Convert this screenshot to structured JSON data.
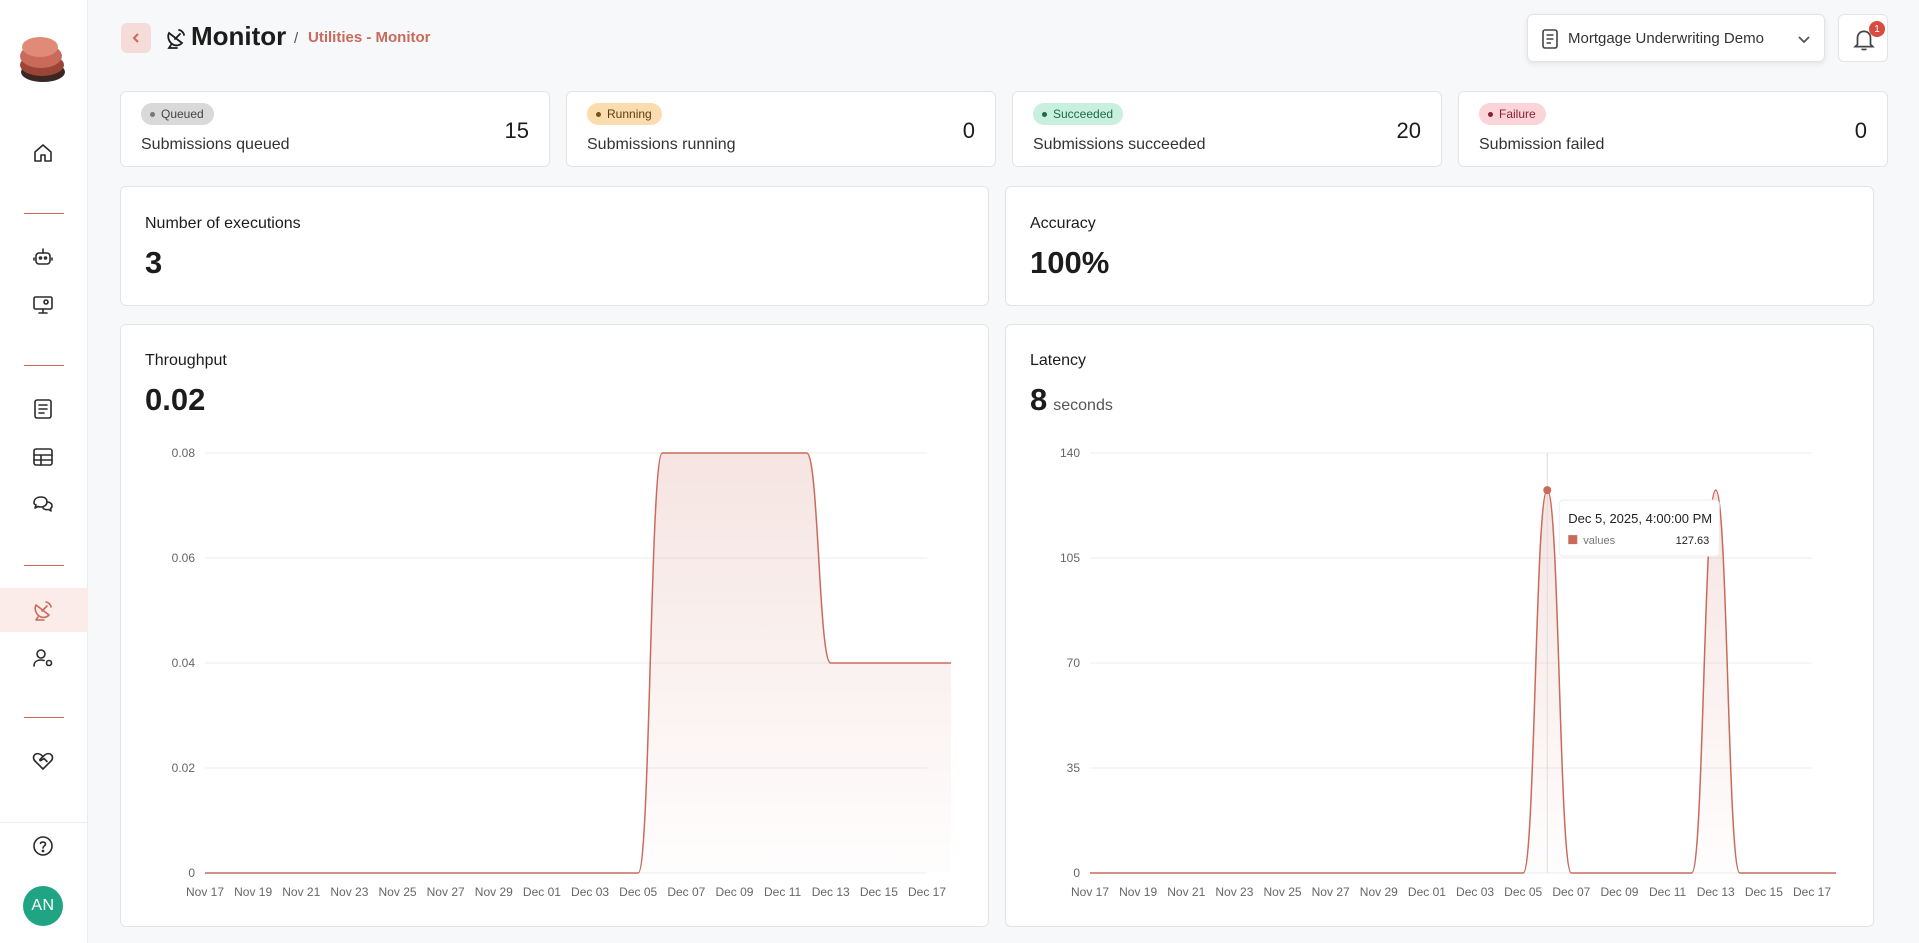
{
  "colors": {
    "accent": "#c96a5a",
    "avatar": "#1fa484",
    "badge": "#d94b3e"
  },
  "sidebar": {
    "logo": "app-logo",
    "items": [
      {
        "name": "home",
        "icon": "home-icon"
      },
      {
        "name": "bots",
        "icon": "robot-icon"
      },
      {
        "name": "screen",
        "icon": "monitor-screen-icon"
      },
      {
        "name": "documents",
        "icon": "document-icon"
      },
      {
        "name": "tables",
        "icon": "table-icon"
      },
      {
        "name": "chat",
        "icon": "chat-icon"
      },
      {
        "name": "monitor",
        "icon": "satellite-dish-icon",
        "active": true
      },
      {
        "name": "users",
        "icon": "user-settings-icon"
      },
      {
        "name": "health",
        "icon": "heart-handshake-icon"
      },
      {
        "name": "help",
        "icon": "help-icon"
      }
    ],
    "avatar_initials": "AN"
  },
  "header": {
    "title": "Monitor",
    "breadcrumb_sep": "/",
    "breadcrumb": "Utilities - Monitor",
    "project": "Mortgage Underwriting Demo",
    "notifications": "1"
  },
  "stats": [
    {
      "badge": "Queued",
      "label": "Submissions queued",
      "value": "15",
      "badge_bg": "#d9d9d9",
      "badge_fg": "#444444",
      "dot": "#777777"
    },
    {
      "badge": "Running",
      "label": "Submissions running",
      "value": "0",
      "badge_bg": "#fbdcae",
      "badge_fg": "#5a3d10",
      "dot": "#7a5114"
    },
    {
      "badge": "Succeeded",
      "label": "Submissions succeeded",
      "value": "20",
      "badge_bg": "#c9f0dd",
      "badge_fg": "#1b6b45",
      "dot": "#1b6b45"
    },
    {
      "badge": "Failure",
      "label": "Submission failed",
      "value": "0",
      "badge_bg": "#fbd4d9",
      "badge_fg": "#8a1f30",
      "dot": "#8a1f30"
    }
  ],
  "executions": {
    "title": "Number of executions",
    "value": "3"
  },
  "accuracy": {
    "title": "Accuracy",
    "value": "100%"
  },
  "throughput": {
    "title": "Throughput",
    "value": "0.02"
  },
  "latency": {
    "title": "Latency",
    "value": "8",
    "unit": "seconds"
  },
  "chart_data": [
    {
      "type": "area",
      "title": "Throughput",
      "x_ticks": [
        "Nov 17",
        "Nov 19",
        "Nov 21",
        "Nov 23",
        "Nov 25",
        "Nov 27",
        "Nov 29",
        "Dec 01",
        "Dec 03",
        "Dec 05",
        "Dec 07",
        "Dec 09",
        "Dec 11",
        "Dec 13",
        "Dec 15",
        "Dec 17"
      ],
      "y_ticks": [
        "0",
        "0.02",
        "0.04",
        "0.06",
        "0.08"
      ],
      "ylim": [
        0,
        0.08
      ],
      "x": [
        "Nov 17",
        "Dec 04",
        "Dec 05",
        "Dec 11",
        "Dec 12",
        "Dec 17"
      ],
      "values": [
        0,
        0,
        0.08,
        0.08,
        0.04,
        0.04
      ]
    },
    {
      "type": "area",
      "title": "Latency",
      "x_ticks": [
        "Nov 17",
        "Nov 19",
        "Nov 21",
        "Nov 23",
        "Nov 25",
        "Nov 27",
        "Nov 29",
        "Dec 01",
        "Dec 03",
        "Dec 05",
        "Dec 07",
        "Dec 09",
        "Dec 11",
        "Dec 13",
        "Dec 15",
        "Dec 17"
      ],
      "y_ticks": [
        "0",
        "35",
        "70",
        "105",
        "140"
      ],
      "ylim": [
        0,
        140
      ],
      "x": [
        "Nov 17",
        "Dec 04",
        "Dec 05",
        "Dec 06",
        "Dec 11",
        "Dec 12",
        "Dec 13",
        "Dec 17"
      ],
      "values": [
        0,
        0,
        127.63,
        0,
        0,
        127.63,
        0,
        0
      ],
      "tooltip": {
        "title": "Dec 5, 2025, 4:00:00 PM",
        "series": "values",
        "value": "127.63"
      }
    }
  ]
}
